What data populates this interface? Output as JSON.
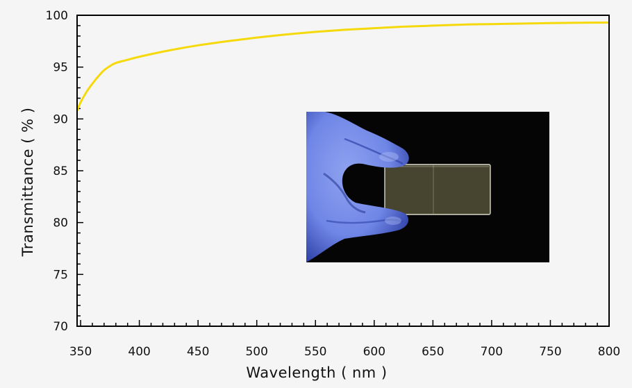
{
  "chart_data": {
    "type": "line",
    "xlabel": "Wavelength ( nm )",
    "ylabel": "Transmittance ( % )",
    "xlim": [
      347,
      800
    ],
    "ylim": [
      70,
      100
    ],
    "x_ticks": [
      350,
      400,
      450,
      500,
      550,
      600,
      650,
      700,
      750,
      800
    ],
    "x_tick_labels": [
      "350",
      "400",
      "450",
      "500",
      "550",
      "600",
      "650",
      "700",
      "750",
      "800"
    ],
    "y_ticks": [
      70,
      75,
      80,
      85,
      90,
      95,
      100
    ],
    "y_tick_labels": [
      "70",
      "75",
      "80",
      "85",
      "90",
      "95",
      "100"
    ],
    "grid": false,
    "series": [
      {
        "color": "#f5d90a",
        "x": [
          347,
          350,
          355,
          360,
          365,
          370,
          375,
          380,
          390,
          400,
          425,
          450,
          475,
          500,
          525,
          550,
          575,
          600,
          625,
          650,
          675,
          700,
          725,
          750,
          775,
          800
        ],
        "y": [
          90.8,
          91.6,
          92.6,
          93.4,
          94.1,
          94.7,
          95.1,
          95.4,
          95.7,
          96.0,
          96.6,
          97.1,
          97.5,
          97.85,
          98.15,
          98.4,
          98.6,
          98.75,
          98.9,
          99.0,
          99.1,
          99.15,
          99.2,
          99.25,
          99.28,
          99.3
        ]
      }
    ],
    "inset": {
      "content": "photo",
      "subject": "gloved-hand-holding-glass-slide",
      "colors": {
        "background": "#050505",
        "glove": "#6f86e6",
        "glove_shadow": "#3143a8",
        "slide": "#8e8a5e",
        "slide_edge": "#d8d8c8"
      }
    }
  }
}
